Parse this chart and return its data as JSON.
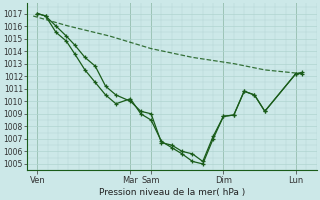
{
  "background_color": "#cce8e8",
  "grid_color": "#b0d4d0",
  "line_color": "#1a5c1a",
  "xlabel_text": "Pression niveau de la mer( hPa )",
  "ylim": [
    1004.5,
    1017.8
  ],
  "yticks": [
    1005,
    1006,
    1007,
    1008,
    1009,
    1010,
    1011,
    1012,
    1013,
    1014,
    1015,
    1016,
    1017
  ],
  "xlim": [
    0,
    14.0
  ],
  "xtick_labels": [
    "Ven",
    "Mar",
    "Sam",
    "Dim",
    "Lun"
  ],
  "xtick_positions": [
    0.5,
    5.0,
    6.0,
    9.5,
    13.0
  ],
  "num_cols": 14,
  "line1_x": [
    0.5,
    0.9,
    1.4,
    1.9,
    2.3,
    2.8,
    3.3,
    3.8,
    4.3,
    5.0,
    5.5,
    6.0,
    6.5,
    7.0,
    7.5,
    8.0,
    8.5,
    9.0,
    9.5,
    10.0,
    10.5,
    11.0,
    11.5,
    13.0,
    13.3
  ],
  "line1_y": [
    1017.0,
    1016.8,
    1016.0,
    1015.2,
    1014.5,
    1013.5,
    1012.8,
    1011.2,
    1010.5,
    1010.0,
    1009.2,
    1009.0,
    1006.7,
    1006.5,
    1006.0,
    1005.8,
    1005.2,
    1007.2,
    1008.8,
    1008.9,
    1010.8,
    1010.5,
    1009.2,
    1012.2,
    1012.2
  ],
  "line2_x": [
    0.5,
    0.9,
    1.4,
    1.9,
    2.3,
    2.8,
    3.3,
    3.8,
    4.3,
    5.0,
    5.5,
    6.0,
    6.5,
    7.0,
    7.5,
    8.0,
    8.5,
    9.0,
    9.5,
    10.0,
    10.5,
    11.0,
    11.5,
    13.0,
    13.3
  ],
  "line2_y": [
    1017.0,
    1016.8,
    1015.5,
    1014.8,
    1013.8,
    1012.5,
    1011.5,
    1010.5,
    1009.8,
    1010.2,
    1009.0,
    1008.5,
    1006.8,
    1006.3,
    1005.8,
    1005.2,
    1005.0,
    1007.0,
    1008.8,
    1008.9,
    1010.8,
    1010.5,
    1009.2,
    1012.2,
    1012.3
  ],
  "line3_x": [
    0.3,
    2.0,
    4.0,
    6.0,
    8.0,
    10.0,
    11.5,
    13.3
  ],
  "line3_y": [
    1016.8,
    1016.0,
    1015.2,
    1014.2,
    1013.5,
    1013.0,
    1012.5,
    1012.2
  ]
}
